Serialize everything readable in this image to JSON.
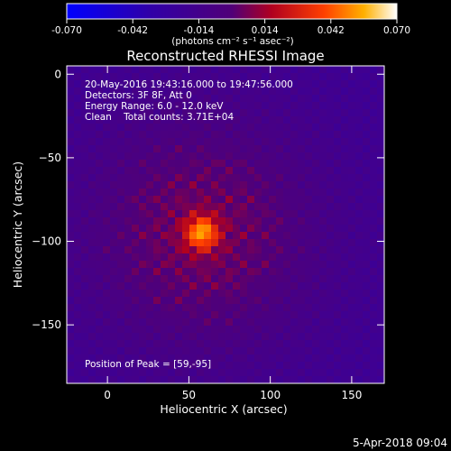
{
  "chart_data": {
    "type": "heatmap",
    "title": "Reconstructed RHESSI Image",
    "xlabel": "Heliocentric X (arcsec)",
    "ylabel": "Heliocentric Y (arcsec)",
    "xlim": [
      -25,
      170
    ],
    "ylim": [
      -185,
      5
    ],
    "xticks": [
      0,
      50,
      100,
      150
    ],
    "yticks": [
      0,
      -50,
      -100,
      -150
    ],
    "colorbar": {
      "min": -0.07,
      "max": 0.07,
      "ticks": [
        "-0.070",
        "-0.042",
        "-0.014",
        "0.014",
        "0.042",
        "0.070"
      ],
      "label": "(photons cm⁻² s⁻¹ asec⁻²)"
    },
    "annotations": [
      "20-May-2016 19:43:16.000 to 19:47:56.000",
      "Detectors: 3F 8F, Att 0",
      "Energy Range: 6.0 - 12.0 keV",
      "Clean    Total counts: 3.71E+04"
    ],
    "peak": {
      "x": 59,
      "y": -95,
      "label": "Position of Peak = [59,-95]"
    },
    "source": {
      "x": 58,
      "y": -95,
      "peak_value": 0.07,
      "background": -0.02
    }
  },
  "footer": {
    "date": "5-Apr-2018 09:04"
  }
}
